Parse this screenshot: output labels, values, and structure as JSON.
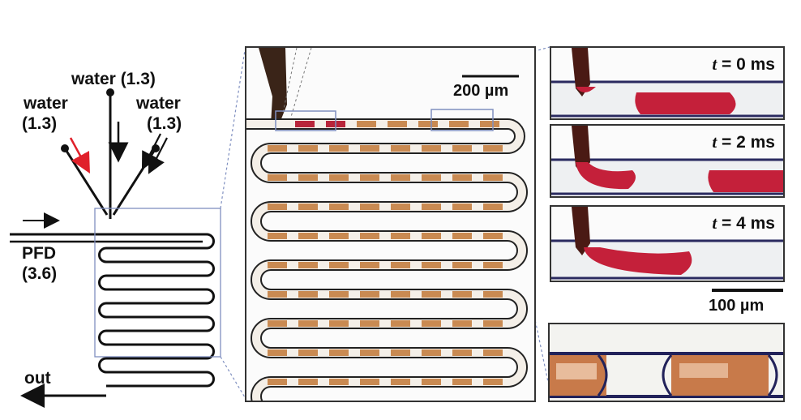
{
  "inlets": {
    "center": "water (1.3)",
    "left_line1": "water",
    "left_line2": "(1.3)",
    "right_line1": "water",
    "right_line2": "(1.3)"
  },
  "oil_inlet": {
    "line1": "PFD",
    "line2": "(3.6)"
  },
  "outlet": "out",
  "scale_bars": {
    "main": "200 µm",
    "inset": "100 µm"
  },
  "time_frames": [
    {
      "var": "t",
      "rest": " = 0 ms"
    },
    {
      "var": "t",
      "rest": " = 2 ms"
    },
    {
      "var": "t",
      "rest": " = 4 ms"
    }
  ],
  "colors": {
    "channel": "#111111",
    "plug": "#c98a52",
    "plug_dark": "#b8253a",
    "arrow_highlight": "#e0202a",
    "outline": "#7f8fc0"
  }
}
